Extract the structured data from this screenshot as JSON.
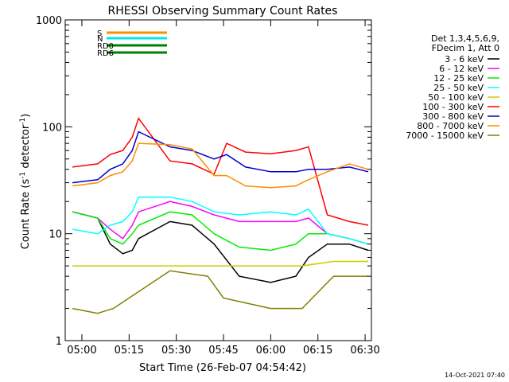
{
  "chart_data": {
    "type": "line",
    "title": "RHESSI Observing Summary Count Rates",
    "xlabel": "Start Time (26-Feb-07 04:54:42)",
    "ylabel_main": "Count Rate (s",
    "ylabel_sup1": "-1",
    "ylabel_mid": " detector",
    "ylabel_sup2": "-1",
    "ylabel_end": ")",
    "yscale": "log",
    "ylim": [
      1,
      1000
    ],
    "xlim": [
      "04:54:42",
      "06:32:00"
    ],
    "x_ticks": [
      "05:00",
      "05:15",
      "05:30",
      "05:45",
      "06:00",
      "06:15",
      "06:30"
    ],
    "y_ticks": [
      "1",
      "10",
      "100",
      "1000"
    ],
    "legend_header": [
      "Det 1,3,4,5,6,9,",
      "FDecim 1, Att 0"
    ],
    "legend_placement": "right",
    "timestamp": "14-Oct-2021 07:40",
    "flags": [
      {
        "label": "S",
        "color": "#ff8c00"
      },
      {
        "label": "N",
        "color": "#00e5ee"
      },
      {
        "label": "RD0",
        "color": "#008000"
      },
      {
        "label": "RD6",
        "color": "#008000"
      }
    ],
    "series": [
      {
        "name": "3 - 6 keV",
        "color": "#000000",
        "points": [
          [
            "04:57",
            16
          ],
          [
            "05:05",
            14
          ],
          [
            "05:09",
            8
          ],
          [
            "05:13",
            6.5
          ],
          [
            "05:16",
            7
          ],
          [
            "05:18",
            9
          ],
          [
            "05:28",
            13
          ],
          [
            "05:35",
            12
          ],
          [
            "05:42",
            8
          ],
          [
            "05:50",
            4
          ],
          [
            "06:00",
            3.5
          ],
          [
            "06:08",
            4
          ],
          [
            "06:12",
            6
          ],
          [
            "06:18",
            8
          ],
          [
            "06:25",
            8
          ],
          [
            "06:31",
            7
          ]
        ]
      },
      {
        "name": "6 - 12 keV",
        "color": "#ff00ff",
        "points": [
          [
            "04:57",
            16
          ],
          [
            "05:05",
            14
          ],
          [
            "05:09",
            11
          ],
          [
            "05:13",
            9
          ],
          [
            "05:16",
            12
          ],
          [
            "05:18",
            16
          ],
          [
            "05:28",
            20
          ],
          [
            "05:35",
            18
          ],
          [
            "05:42",
            15
          ],
          [
            "05:50",
            13
          ],
          [
            "06:00",
            13
          ],
          [
            "06:08",
            13
          ],
          [
            "06:12",
            14
          ],
          [
            "06:18",
            10
          ],
          [
            "06:25",
            9
          ],
          [
            "06:31",
            8
          ]
        ]
      },
      {
        "name": "12 - 25 keV",
        "color": "#00ee00",
        "points": [
          [
            "04:57",
            16
          ],
          [
            "05:05",
            14
          ],
          [
            "05:09",
            9
          ],
          [
            "05:13",
            8
          ],
          [
            "05:16",
            10
          ],
          [
            "05:18",
            12
          ],
          [
            "05:28",
            16
          ],
          [
            "05:35",
            15
          ],
          [
            "05:42",
            10
          ],
          [
            "05:50",
            7.5
          ],
          [
            "06:00",
            7
          ],
          [
            "06:08",
            8
          ],
          [
            "06:12",
            10
          ],
          [
            "06:18",
            10
          ],
          [
            "06:25",
            9
          ],
          [
            "06:31",
            8
          ]
        ]
      },
      {
        "name": "25 - 50 keV",
        "color": "#00ffff",
        "points": [
          [
            "04:57",
            11
          ],
          [
            "05:05",
            10
          ],
          [
            "05:09",
            12
          ],
          [
            "05:13",
            13
          ],
          [
            "05:16",
            16
          ],
          [
            "05:18",
            22
          ],
          [
            "05:28",
            22
          ],
          [
            "05:35",
            20
          ],
          [
            "05:42",
            16
          ],
          [
            "05:50",
            15
          ],
          [
            "06:00",
            16
          ],
          [
            "06:08",
            15
          ],
          [
            "06:12",
            17
          ],
          [
            "06:18",
            10
          ],
          [
            "06:25",
            9
          ],
          [
            "06:31",
            8
          ]
        ]
      },
      {
        "name": "50 - 100 keV",
        "color": "#cccc00",
        "points": [
          [
            "04:57",
            5
          ],
          [
            "05:05",
            5
          ],
          [
            "05:10",
            5
          ],
          [
            "05:28",
            5
          ],
          [
            "05:40",
            5
          ],
          [
            "06:10",
            5
          ],
          [
            "06:20",
            5.5
          ],
          [
            "06:31",
            5.5
          ]
        ]
      },
      {
        "name": "100 - 300 keV",
        "color": "#ff0000",
        "points": [
          [
            "04:57",
            42
          ],
          [
            "05:05",
            45
          ],
          [
            "05:09",
            55
          ],
          [
            "05:13",
            60
          ],
          [
            "05:16",
            80
          ],
          [
            "05:18",
            120
          ],
          [
            "05:28",
            48
          ],
          [
            "05:35",
            45
          ],
          [
            "05:42",
            36
          ],
          [
            "05:46",
            70
          ],
          [
            "05:52",
            58
          ],
          [
            "06:00",
            56
          ],
          [
            "06:08",
            60
          ],
          [
            "06:12",
            65
          ],
          [
            "06:18",
            15
          ],
          [
            "06:25",
            13
          ],
          [
            "06:31",
            12
          ]
        ]
      },
      {
        "name": "300 - 800 keV",
        "color": "#0000cc",
        "points": [
          [
            "04:57",
            30
          ],
          [
            "05:05",
            32
          ],
          [
            "05:09",
            40
          ],
          [
            "05:13",
            45
          ],
          [
            "05:16",
            60
          ],
          [
            "05:18",
            90
          ],
          [
            "05:28",
            65
          ],
          [
            "05:35",
            60
          ],
          [
            "05:42",
            50
          ],
          [
            "05:46",
            55
          ],
          [
            "05:52",
            42
          ],
          [
            "06:00",
            38
          ],
          [
            "06:08",
            38
          ],
          [
            "06:12",
            40
          ],
          [
            "06:18",
            40
          ],
          [
            "06:25",
            42
          ],
          [
            "06:31",
            38
          ]
        ]
      },
      {
        "name": "800 - 7000 keV",
        "color": "#ff8c00",
        "points": [
          [
            "04:57",
            28
          ],
          [
            "05:05",
            30
          ],
          [
            "05:09",
            35
          ],
          [
            "05:13",
            38
          ],
          [
            "05:16",
            48
          ],
          [
            "05:18",
            70
          ],
          [
            "05:28",
            68
          ],
          [
            "05:35",
            62
          ],
          [
            "05:42",
            35
          ],
          [
            "05:46",
            35
          ],
          [
            "05:52",
            28
          ],
          [
            "06:00",
            27
          ],
          [
            "06:08",
            28
          ],
          [
            "06:12",
            32
          ],
          [
            "06:18",
            38
          ],
          [
            "06:25",
            45
          ],
          [
            "06:31",
            40
          ]
        ]
      },
      {
        "name": "7000 - 15000 keV",
        "color": "#808000",
        "points": [
          [
            "04:57",
            2
          ],
          [
            "05:05",
            1.8
          ],
          [
            "05:10",
            2
          ],
          [
            "05:28",
            4.5
          ],
          [
            "05:40",
            4
          ],
          [
            "05:45",
            2.5
          ],
          [
            "06:00",
            2
          ],
          [
            "06:10",
            2
          ],
          [
            "06:20",
            4
          ],
          [
            "06:31",
            4
          ]
        ]
      }
    ]
  }
}
